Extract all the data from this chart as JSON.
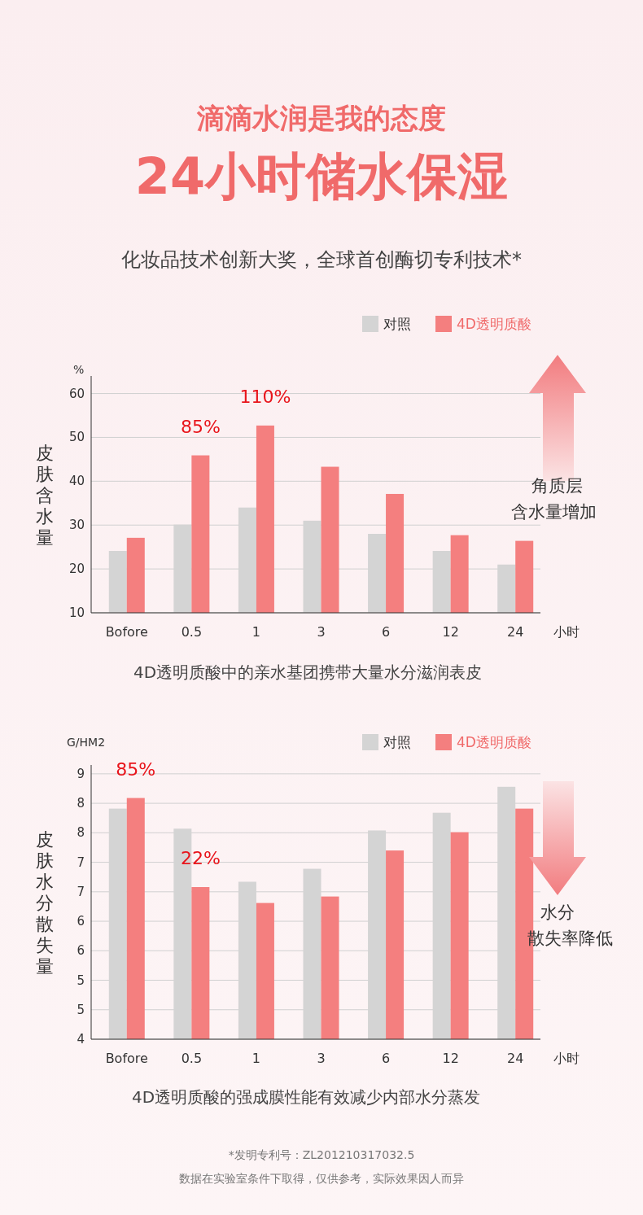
{
  "chart_data": [
    {
      "type": "bar",
      "title": "滴滴水润是我的态度",
      "subtitle": "24小时储水保湿",
      "xlabel": "小时",
      "ylabel": "皮肤含水量",
      "categories": [
        "Bofore",
        "0.5",
        "1",
        "3",
        "6",
        "12",
        "24"
      ],
      "series": [
        {
          "name": "对照",
          "color": "#d4d4d4",
          "values": [
            24.1,
            30.1,
            34.0,
            31.0,
            28.0,
            24.1,
            21.0
          ]
        },
        {
          "name": "4D透明质酸",
          "color": "#f47f7f",
          "values": [
            27.1,
            45.9,
            52.7,
            43.3,
            37.1,
            27.7,
            26.4
          ]
        }
      ],
      "ylim": [
        10,
        64
      ],
      "yticks": [
        10,
        20,
        30,
        40,
        50,
        60
      ],
      "grid": "y",
      "legend": "top right",
      "annotations": [
        "化妆品技术创新大奖，全球首创酶切专利技术*",
        "%",
        "角质层",
        "含水量增加",
        "4D透明质酸中的亲水基团携带大量水分滋润表皮",
        {
          "text": "85%",
          "x": "0.5",
          "y": 45.9
        },
        {
          "text": "110%",
          "x": "1",
          "y": 52.7
        }
      ]
    },
    {
      "type": "bar",
      "xlabel": "小时",
      "ylabel": "皮肤水分散失量",
      "categories": [
        "Bofore",
        "0.5",
        "1",
        "3",
        "6",
        "12",
        "24"
      ],
      "series": [
        {
          "name": "对照",
          "color": "#d4d4d4",
          "values": [
            7.91,
            7.57,
            6.67,
            6.89,
            7.54,
            7.84,
            8.28
          ]
        },
        {
          "name": "4D透明质酸",
          "color": "#f47f7f",
          "values": [
            8.09,
            6.58,
            6.31,
            6.42,
            7.2,
            7.51,
            7.91
          ]
        }
      ],
      "ylim": [
        4,
        8.65
      ],
      "yticks": [
        4,
        {
          "value": 4.5,
          "label": "5"
        },
        5,
        {
          "value": 5.5,
          "label": "6"
        },
        6,
        {
          "value": 6.5,
          "label": "7"
        },
        7,
        {
          "value": 7.5,
          "label": "8"
        },
        8,
        {
          "value": 8.5,
          "label": "9"
        }
      ],
      "grid": "y",
      "legend": "top right",
      "annotations": [
        "G/HM2",
        "水分",
        "散失率降低",
        "4D透明质酸的强成膜性能有效减少内部水分蒸发",
        "*发明专利号：ZL201210317032.5",
        "数据在实验室条件下取得，仅供参考，实际效果因人而异",
        {
          "text": "85%",
          "x": "Bofore",
          "y": 8.09
        },
        {
          "text": "22%",
          "x": "0.5",
          "y": 6.58
        }
      ]
    }
  ]
}
